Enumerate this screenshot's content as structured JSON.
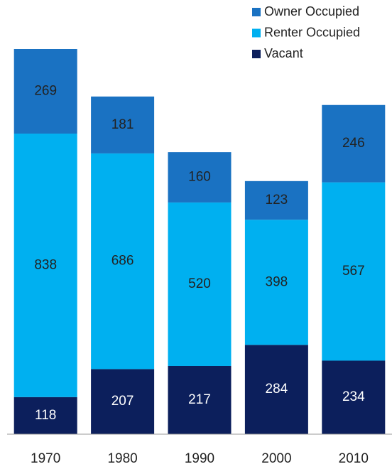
{
  "chart_data": {
    "type": "stacked_bar",
    "categories": [
      "1970",
      "1980",
      "1990",
      "2000",
      "2010"
    ],
    "series": [
      {
        "name": "Owner Occupied",
        "color": "#1a72c2",
        "values": [
          269,
          181,
          160,
          123,
          246
        ]
      },
      {
        "name": "Renter Occupied",
        "color": "#00b0f0",
        "values": [
          838,
          686,
          520,
          398,
          567
        ]
      },
      {
        "name": "Vacant",
        "color": "#0c1f5c",
        "values": [
          118,
          207,
          217,
          284,
          234
        ]
      }
    ],
    "stack_order": [
      "Vacant",
      "Renter Occupied",
      "Owner Occupied"
    ],
    "legend": "top-right"
  }
}
